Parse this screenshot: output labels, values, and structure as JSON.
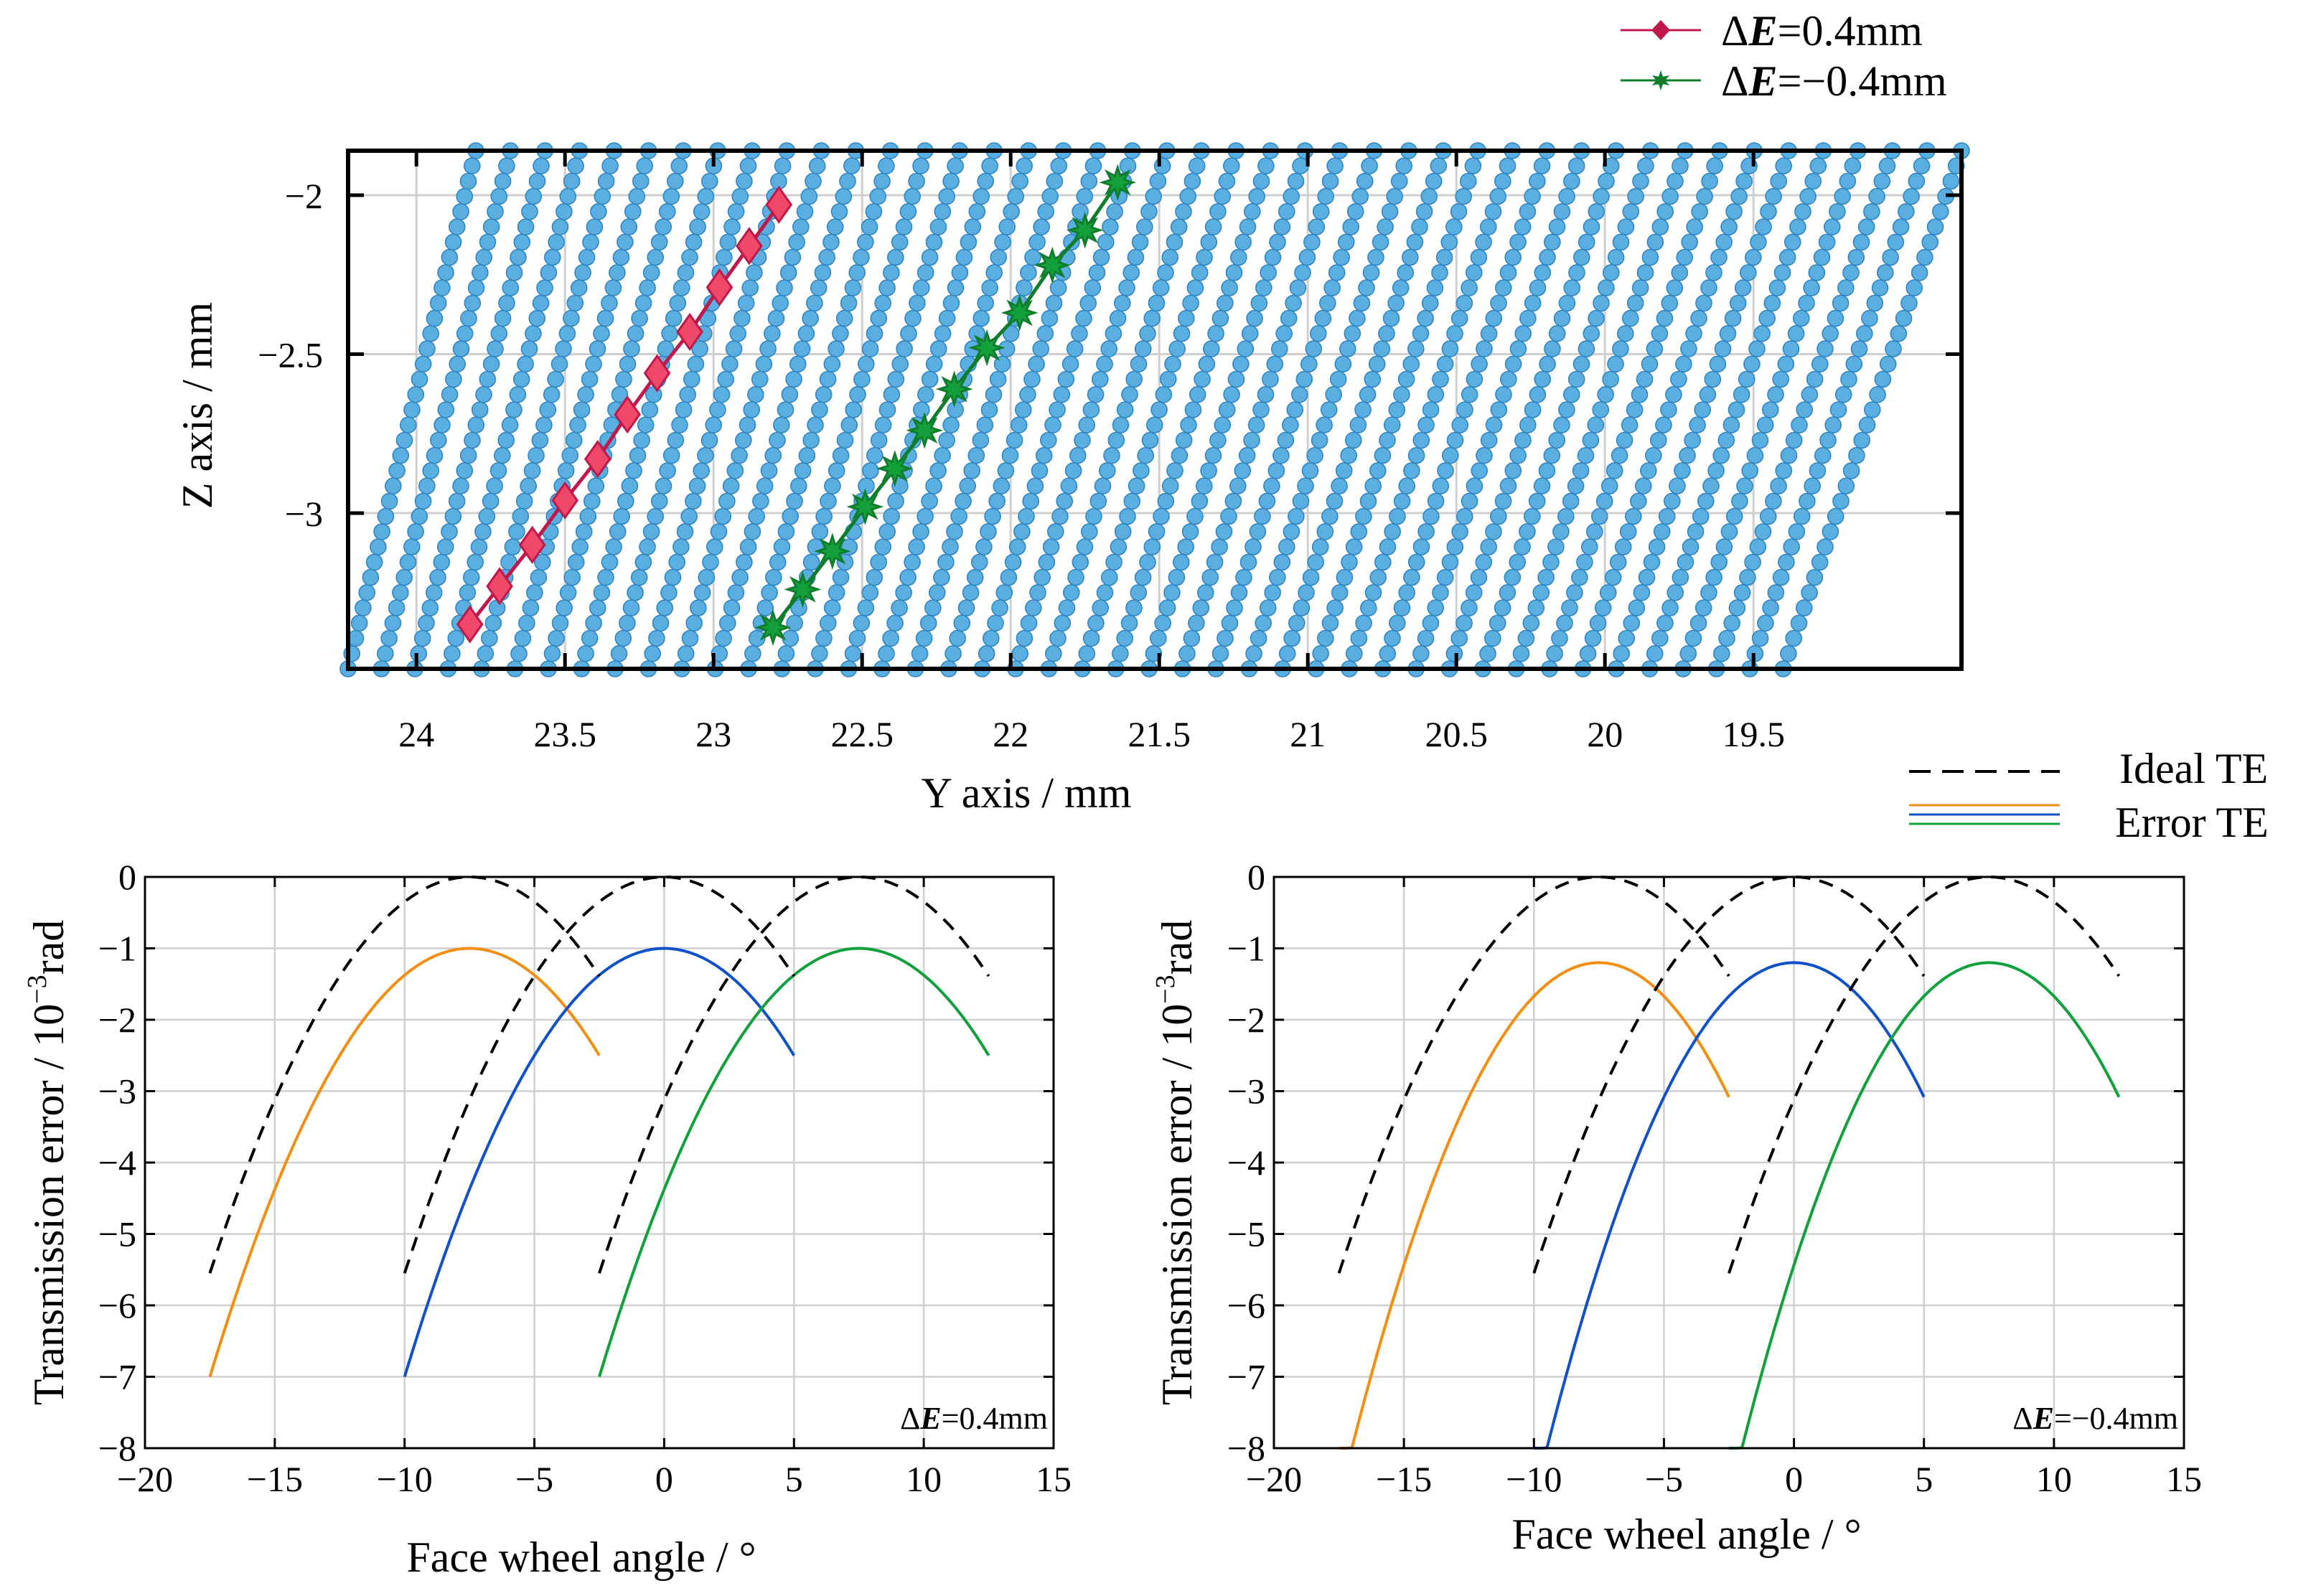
{
  "colors": {
    "mesh": "#5aaee0",
    "mesh_edge": "#2f86c2",
    "red_line": "#c0184a",
    "red_marker": "#f04868",
    "green_line": "#0f7d2c",
    "green_marker": "#13a03a",
    "orange": "#f28e12",
    "blue": "#1050c8",
    "green_curve": "#10a03c",
    "ideal": "#000000",
    "grid": "#cfcfcf"
  },
  "chart_data": [
    {
      "type": "scatter",
      "id": "top",
      "title": "",
      "xlabel": "Y axis / mm",
      "ylabel": "Z axis / mm",
      "xlim": [
        24.23,
        18.8
      ],
      "ylim": [
        -3.49,
        -1.86
      ],
      "xticks": [
        24,
        23.5,
        23,
        22.5,
        22,
        21.5,
        21,
        20.5,
        20,
        19.5
      ],
      "xtick_labels": [
        "24",
        "23.5",
        "23",
        "22.5",
        "22",
        "21.5",
        "21",
        "20.5",
        "20",
        "19.5"
      ],
      "yticks": [
        -2,
        -2.5,
        -3
      ],
      "ytick_labels": [
        "−2",
        "−2.5",
        "−3"
      ],
      "grid": true,
      "legend": "top-right",
      "mesh": {
        "columns": 44,
        "points_per_column": 35,
        "bottom_y_start": 24.23,
        "bottom_y_end": 19.4,
        "top_y_start": 23.8,
        "top_y_end": 18.8,
        "z_bottom": -3.49,
        "z_top": -1.86
      },
      "series": [
        {
          "name": "ΔE=0.4mm",
          "legend_prefix": "Δ",
          "legend_var": "E",
          "legend_suffix": "=0.4mm",
          "marker": "diamond",
          "x": [
            23.82,
            23.72,
            23.61,
            23.5,
            23.39,
            23.29,
            23.19,
            23.08,
            22.98,
            22.88,
            22.78
          ],
          "y": [
            -3.35,
            -3.23,
            -3.1,
            -2.96,
            -2.83,
            -2.69,
            -2.56,
            -2.43,
            -2.29,
            -2.16,
            -2.03
          ]
        },
        {
          "name": "ΔE=−0.4mm",
          "legend_prefix": "Δ",
          "legend_var": "E",
          "legend_suffix": "=−0.4mm",
          "marker": "star",
          "x": [
            22.8,
            22.7,
            22.6,
            22.49,
            22.39,
            22.29,
            22.19,
            22.08,
            21.97,
            21.86,
            21.75,
            21.64
          ],
          "y": [
            -3.36,
            -3.24,
            -3.12,
            -2.98,
            -2.86,
            -2.74,
            -2.61,
            -2.48,
            -2.37,
            -2.22,
            -2.11,
            -1.96
          ]
        }
      ]
    },
    {
      "type": "line",
      "id": "bottom-left",
      "xlabel": "Face wheel angle / °",
      "ylabel": "Transmission error / 10^-3 rad",
      "ylabel_main": "Transmission error / 10",
      "ylabel_exp": "−3",
      "ylabel_unit": "rad",
      "xlim": [
        -20,
        15
      ],
      "ylim": [
        -8,
        0
      ],
      "xticks": [
        -20,
        -15,
        -10,
        -5,
        0,
        5,
        10,
        15
      ],
      "xtick_labels": [
        "−20",
        "−15",
        "−10",
        "−5",
        "0",
        "5",
        "10",
        "15"
      ],
      "yticks": [
        0,
        -1,
        -2,
        -3,
        -4,
        -5,
        -6,
        -7,
        -8
      ],
      "ytick_labels": [
        "0",
        "−1",
        "−2",
        "−3",
        "−4",
        "−5",
        "−6",
        "−7",
        "−8"
      ],
      "grid": true,
      "annotation_prefix": "Δ",
      "annotation_var": "E",
      "annotation_suffix": "=0.4mm",
      "ideal_curves": [
        {
          "start": -17.5,
          "end": -2.5,
          "peak_x": -7.5,
          "peak_y": 0,
          "coef": 0.0555
        },
        {
          "start": -10,
          "end": 5,
          "peak_x": 0,
          "peak_y": 0,
          "coef": 0.0555
        },
        {
          "start": -2.5,
          "end": 12.5,
          "peak_x": 7.5,
          "peak_y": 0,
          "coef": 0.0555
        }
      ],
      "error_curves": [
        {
          "color": "orange",
          "start": -17.5,
          "end": -2.5,
          "peak_x": -7.5,
          "peak_y": -1,
          "coef": 0.06
        },
        {
          "color": "blue",
          "start": -10,
          "end": 5,
          "peak_x": 0,
          "peak_y": -1,
          "coef": 0.06
        },
        {
          "color": "green_curve",
          "start": -2.5,
          "end": 12.5,
          "peak_x": 7.5,
          "peak_y": -1,
          "coef": 0.06
        }
      ]
    },
    {
      "type": "line",
      "id": "bottom-right",
      "xlabel": "Face wheel angle / °",
      "ylabel": "Transmission error / 10^-3 rad",
      "ylabel_main": "Transmission error / 10",
      "ylabel_exp": "−3",
      "ylabel_unit": "rad",
      "xlim": [
        -20,
        15
      ],
      "ylim": [
        -8,
        0
      ],
      "xticks": [
        -20,
        -15,
        -10,
        -5,
        0,
        5,
        10,
        15
      ],
      "xtick_labels": [
        "−20",
        "−15",
        "−10",
        "−5",
        "0",
        "5",
        "10",
        "15"
      ],
      "yticks": [
        0,
        -1,
        -2,
        -3,
        -4,
        -5,
        -6,
        -7,
        -8
      ],
      "ytick_labels": [
        "0",
        "−1",
        "−2",
        "−3",
        "−4",
        "−5",
        "−6",
        "−7",
        "−8"
      ],
      "grid": true,
      "annotation_prefix": "Δ",
      "annotation_var": "E",
      "annotation_suffix": "=−0.4mm",
      "legend": {
        "ideal_label": "Ideal TE",
        "error_label": "Error TE"
      },
      "ideal_curves": [
        {
          "start": -17.5,
          "end": -2.5,
          "peak_x": -7.5,
          "peak_y": 0,
          "coef": 0.0555
        },
        {
          "start": -10,
          "end": 5,
          "peak_x": 0,
          "peak_y": 0,
          "coef": 0.0555
        },
        {
          "start": -2.5,
          "end": 12.5,
          "peak_x": 7.5,
          "peak_y": 0,
          "coef": 0.0555
        }
      ],
      "error_curves": [
        {
          "color": "orange",
          "start": -17.5,
          "end": -2.5,
          "peak_x": -7.5,
          "peak_y": -1.2,
          "coef": 0.0753
        },
        {
          "color": "blue",
          "start": -10,
          "end": 5,
          "peak_x": 0,
          "peak_y": -1.2,
          "coef": 0.0753
        },
        {
          "color": "green_curve",
          "start": -2.5,
          "end": 12.5,
          "peak_x": 7.5,
          "peak_y": -1.2,
          "coef": 0.0753
        }
      ]
    }
  ]
}
